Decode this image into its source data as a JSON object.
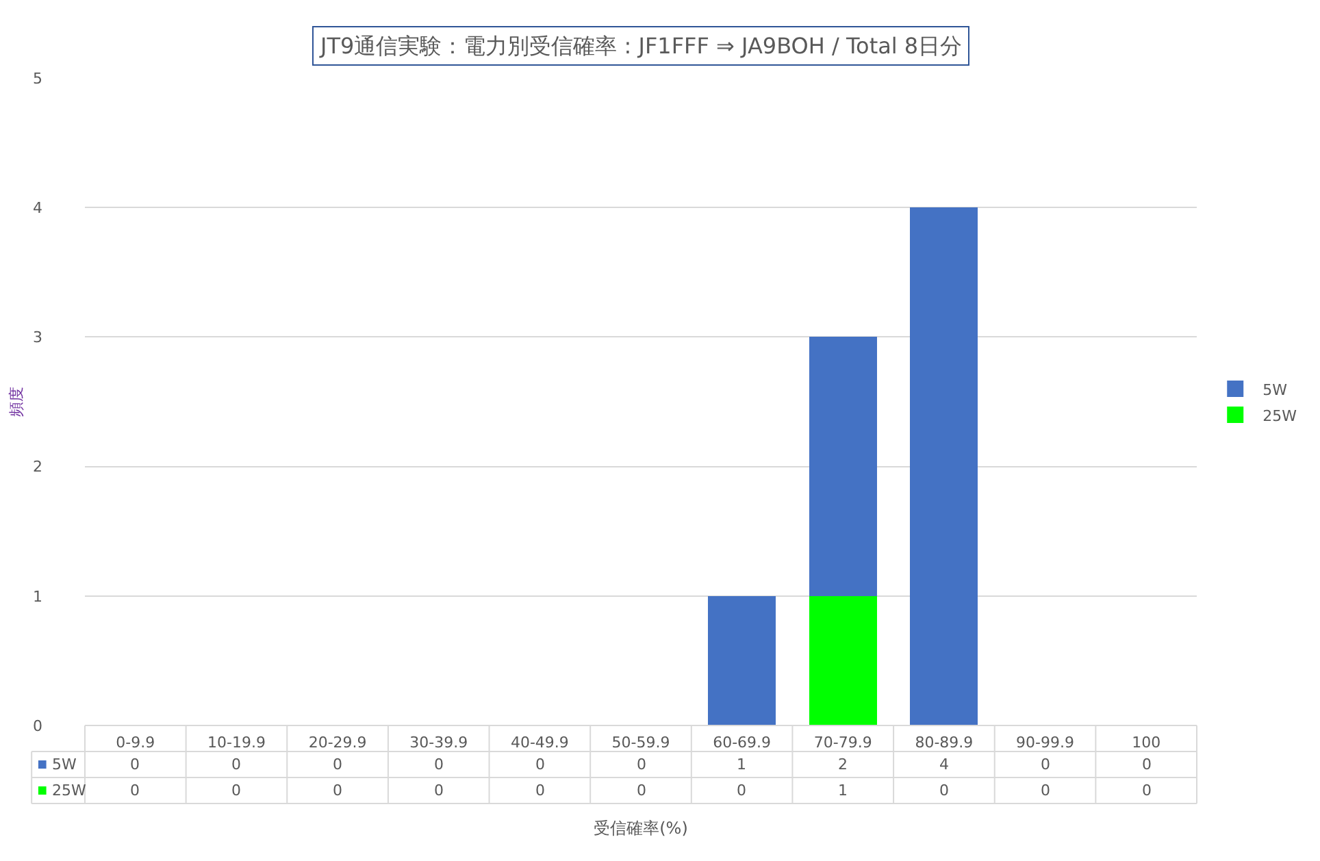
{
  "chart_data": {
    "type": "bar",
    "title": "JT9通信実験：電力別受信確率 : JF1FFF ⇒ JA9BOH / Total 8日分",
    "xlabel": "受信確率(%)",
    "ylabel": "頻度",
    "categories": [
      "0-9.9",
      "10-19.9",
      "20-29.9",
      "30-39.9",
      "40-49.9",
      "50-59.9",
      "60-69.9",
      "70-79.9",
      "80-89.9",
      "90-99.9",
      "100"
    ],
    "series": [
      {
        "name": "25W",
        "color": "#00ff00",
        "values": [
          0,
          0,
          0,
          0,
          0,
          0,
          0,
          1,
          0,
          0,
          0
        ]
      },
      {
        "name": "5W",
        "color": "#4472c4",
        "values": [
          0,
          0,
          0,
          0,
          0,
          0,
          1,
          2,
          4,
          0,
          0
        ]
      }
    ],
    "stacked": true,
    "ylim": [
      0,
      5
    ],
    "yticks": [
      0,
      1,
      2,
      3,
      4,
      5
    ],
    "grid": "y",
    "legend": "right",
    "data_labels": true
  }
}
